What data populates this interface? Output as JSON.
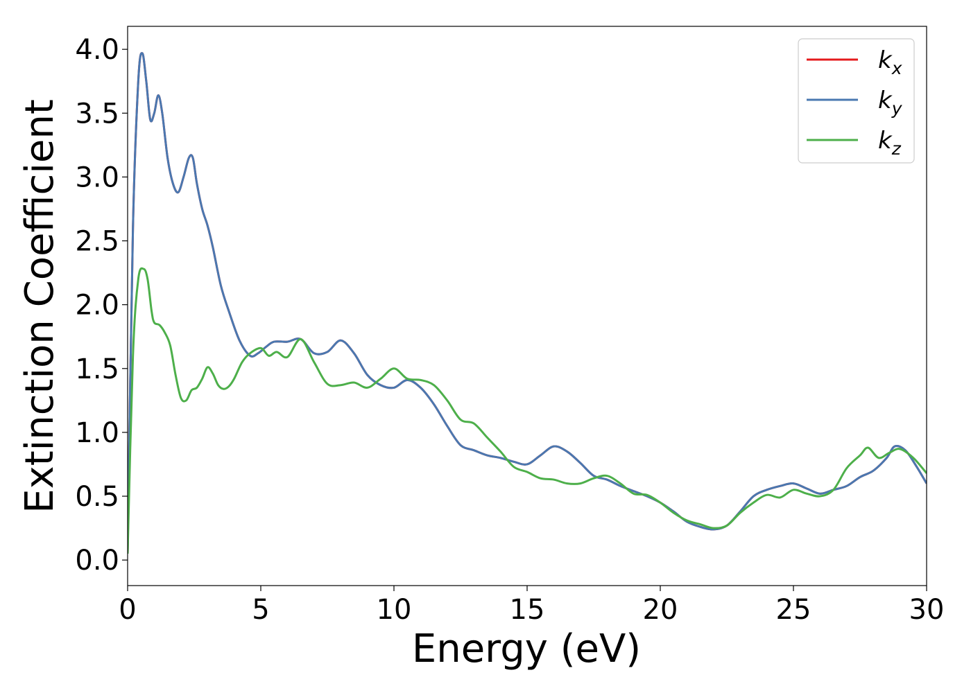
{
  "chart_data": {
    "type": "line",
    "title": "",
    "xlabel": "Energy (eV)",
    "ylabel": "Extinction Coefficient",
    "xlim": [
      0,
      30
    ],
    "ylim": [
      -0.2,
      4.18
    ],
    "xticks": [
      0,
      5,
      10,
      15,
      20,
      25,
      30
    ],
    "yticks": [
      0.0,
      0.5,
      1.0,
      1.5,
      2.0,
      2.5,
      3.0,
      3.5,
      4.0
    ],
    "ytick_labels": [
      "0.0",
      "0.5",
      "1.0",
      "1.5",
      "2.0",
      "2.5",
      "3.0",
      "3.5",
      "4.0"
    ],
    "grid": false,
    "legend": "top-right",
    "series": [
      {
        "name": "k_x",
        "label_base": "k",
        "label_sub": "x",
        "color": "#e41a1c",
        "x": [
          0,
          0.2,
          0.4,
          0.55,
          0.7,
          0.85,
          1.0,
          1.15,
          1.3,
          1.5,
          1.7,
          1.9,
          2.1,
          2.3,
          2.45,
          2.6,
          2.8,
          3.0,
          3.2,
          3.5,
          3.8,
          4.2,
          4.6,
          4.9,
          5.2,
          5.5,
          6.0,
          6.5,
          7.0,
          7.5,
          8.0,
          8.5,
          9.0,
          9.5,
          10.0,
          10.5,
          11.0,
          11.5,
          12.0,
          12.5,
          13.0,
          13.5,
          14.0,
          14.5,
          15.0,
          15.5,
          16.0,
          16.5,
          17.0,
          17.5,
          18.0,
          18.5,
          19.0,
          19.5,
          20.0,
          20.5,
          21.0,
          21.5,
          22.0,
          22.5,
          23.0,
          23.5,
          24.0,
          24.5,
          25.0,
          25.5,
          26.0,
          26.5,
          27.0,
          27.5,
          28.0,
          28.5,
          28.8,
          29.2,
          29.6,
          30.0
        ],
        "y": [
          0.05,
          2.6,
          3.75,
          3.97,
          3.75,
          3.45,
          3.5,
          3.64,
          3.5,
          3.15,
          2.95,
          2.88,
          3.0,
          3.15,
          3.15,
          2.95,
          2.75,
          2.62,
          2.45,
          2.15,
          1.95,
          1.72,
          1.6,
          1.62,
          1.67,
          1.71,
          1.71,
          1.73,
          1.62,
          1.63,
          1.72,
          1.62,
          1.45,
          1.37,
          1.35,
          1.41,
          1.35,
          1.22,
          1.05,
          0.9,
          0.86,
          0.82,
          0.8,
          0.77,
          0.75,
          0.82,
          0.89,
          0.85,
          0.76,
          0.66,
          0.63,
          0.58,
          0.54,
          0.5,
          0.45,
          0.38,
          0.3,
          0.26,
          0.24,
          0.27,
          0.38,
          0.5,
          0.55,
          0.58,
          0.6,
          0.56,
          0.52,
          0.55,
          0.58,
          0.65,
          0.7,
          0.8,
          0.89,
          0.86,
          0.74,
          0.6
        ]
      },
      {
        "name": "k_y",
        "label_base": "k",
        "label_sub": "y",
        "color": "#4a78b0",
        "x": [
          0,
          0.2,
          0.4,
          0.55,
          0.7,
          0.85,
          1.0,
          1.15,
          1.3,
          1.5,
          1.7,
          1.9,
          2.1,
          2.3,
          2.45,
          2.6,
          2.8,
          3.0,
          3.2,
          3.5,
          3.8,
          4.2,
          4.6,
          4.9,
          5.2,
          5.5,
          6.0,
          6.5,
          7.0,
          7.5,
          8.0,
          8.5,
          9.0,
          9.5,
          10.0,
          10.5,
          11.0,
          11.5,
          12.0,
          12.5,
          13.0,
          13.5,
          14.0,
          14.5,
          15.0,
          15.5,
          16.0,
          16.5,
          17.0,
          17.5,
          18.0,
          18.5,
          19.0,
          19.5,
          20.0,
          20.5,
          21.0,
          21.5,
          22.0,
          22.5,
          23.0,
          23.5,
          24.0,
          24.5,
          25.0,
          25.5,
          26.0,
          26.5,
          27.0,
          27.5,
          28.0,
          28.5,
          28.8,
          29.2,
          29.6,
          30.0
        ],
        "y": [
          0.05,
          2.6,
          3.75,
          3.97,
          3.75,
          3.45,
          3.5,
          3.64,
          3.5,
          3.15,
          2.95,
          2.88,
          3.0,
          3.15,
          3.15,
          2.95,
          2.75,
          2.62,
          2.45,
          2.15,
          1.95,
          1.72,
          1.6,
          1.62,
          1.67,
          1.71,
          1.71,
          1.73,
          1.62,
          1.63,
          1.72,
          1.62,
          1.45,
          1.37,
          1.35,
          1.41,
          1.35,
          1.22,
          1.05,
          0.9,
          0.86,
          0.82,
          0.8,
          0.77,
          0.75,
          0.82,
          0.89,
          0.85,
          0.76,
          0.66,
          0.63,
          0.58,
          0.54,
          0.5,
          0.45,
          0.38,
          0.3,
          0.26,
          0.24,
          0.27,
          0.38,
          0.5,
          0.55,
          0.58,
          0.6,
          0.56,
          0.52,
          0.55,
          0.58,
          0.65,
          0.7,
          0.8,
          0.89,
          0.86,
          0.74,
          0.6
        ]
      },
      {
        "name": "k_z",
        "label_base": "k",
        "label_sub": "z",
        "color": "#4daf4a",
        "x": [
          0,
          0.2,
          0.4,
          0.6,
          0.75,
          0.9,
          1.0,
          1.2,
          1.4,
          1.6,
          1.8,
          2.0,
          2.2,
          2.4,
          2.6,
          2.8,
          3.0,
          3.2,
          3.4,
          3.6,
          3.8,
          4.0,
          4.3,
          4.6,
          5.0,
          5.3,
          5.6,
          6.0,
          6.5,
          7.0,
          7.5,
          8.0,
          8.5,
          9.0,
          9.5,
          10.0,
          10.5,
          11.0,
          11.5,
          12.0,
          12.5,
          13.0,
          13.5,
          14.0,
          14.5,
          15.0,
          15.5,
          16.0,
          16.5,
          17.0,
          17.5,
          18.0,
          18.5,
          19.0,
          19.5,
          20.0,
          20.5,
          21.0,
          21.5,
          22.0,
          22.5,
          23.0,
          23.5,
          24.0,
          24.5,
          25.0,
          25.5,
          26.0,
          26.5,
          27.0,
          27.5,
          27.8,
          28.2,
          28.6,
          29.0,
          29.5,
          30.0
        ],
        "y": [
          0.05,
          1.6,
          2.2,
          2.28,
          2.2,
          1.95,
          1.86,
          1.84,
          1.78,
          1.68,
          1.45,
          1.27,
          1.25,
          1.33,
          1.35,
          1.42,
          1.51,
          1.46,
          1.37,
          1.34,
          1.36,
          1.42,
          1.55,
          1.62,
          1.66,
          1.6,
          1.63,
          1.59,
          1.73,
          1.55,
          1.38,
          1.37,
          1.39,
          1.35,
          1.42,
          1.5,
          1.42,
          1.41,
          1.37,
          1.25,
          1.1,
          1.07,
          0.96,
          0.85,
          0.73,
          0.69,
          0.64,
          0.63,
          0.6,
          0.6,
          0.64,
          0.66,
          0.6,
          0.52,
          0.51,
          0.45,
          0.37,
          0.31,
          0.28,
          0.25,
          0.27,
          0.37,
          0.45,
          0.51,
          0.49,
          0.55,
          0.52,
          0.5,
          0.55,
          0.72,
          0.82,
          0.88,
          0.8,
          0.84,
          0.87,
          0.8,
          0.68
        ]
      }
    ]
  }
}
